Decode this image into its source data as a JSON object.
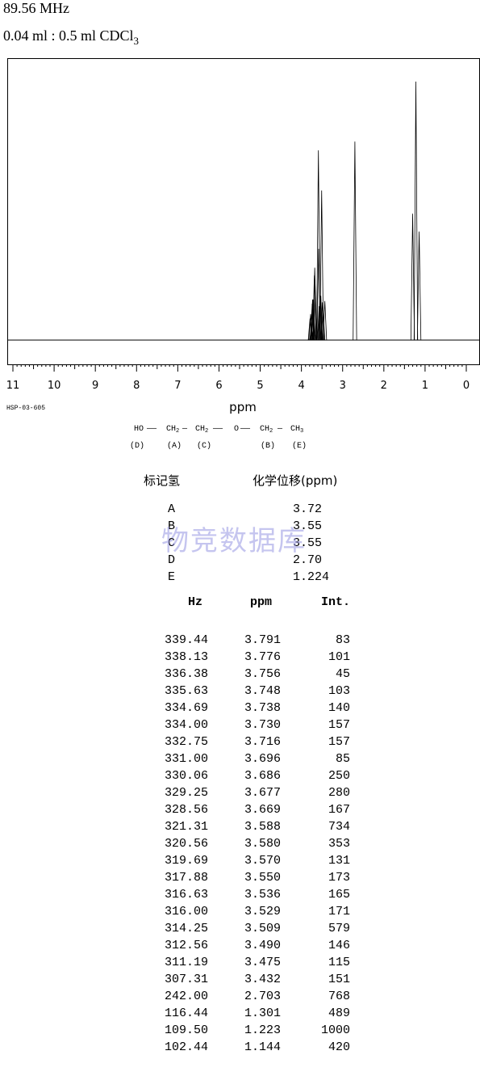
{
  "header": {
    "frequency": "89.56 MHz",
    "sample_prefix": "0.04 ml : 0.5 ml CDCl",
    "sample_subscript": "3"
  },
  "chart_data": {
    "type": "line",
    "title": "",
    "xlabel": "ppm",
    "ylabel": "",
    "xlim": [
      11,
      0
    ],
    "x_reversed": true,
    "ylim": [
      0,
      1000
    ],
    "grid": false,
    "x_ticks": [
      "11",
      "10",
      "9",
      "8",
      "7",
      "6",
      "5",
      "4",
      "3",
      "2",
      "1",
      "0"
    ],
    "peaks": [
      {
        "x": 3.791,
        "y": 83
      },
      {
        "x": 3.776,
        "y": 101
      },
      {
        "x": 3.756,
        "y": 45
      },
      {
        "x": 3.748,
        "y": 103
      },
      {
        "x": 3.738,
        "y": 140
      },
      {
        "x": 3.73,
        "y": 157
      },
      {
        "x": 3.716,
        "y": 157
      },
      {
        "x": 3.696,
        "y": 85
      },
      {
        "x": 3.686,
        "y": 250
      },
      {
        "x": 3.677,
        "y": 280
      },
      {
        "x": 3.669,
        "y": 167
      },
      {
        "x": 3.588,
        "y": 734
      },
      {
        "x": 3.58,
        "y": 353
      },
      {
        "x": 3.57,
        "y": 131
      },
      {
        "x": 3.55,
        "y": 173
      },
      {
        "x": 3.536,
        "y": 165
      },
      {
        "x": 3.529,
        "y": 171
      },
      {
        "x": 3.509,
        "y": 579
      },
      {
        "x": 3.49,
        "y": 146
      },
      {
        "x": 3.475,
        "y": 115
      },
      {
        "x": 3.432,
        "y": 151
      },
      {
        "x": 2.703,
        "y": 768
      },
      {
        "x": 1.301,
        "y": 489
      },
      {
        "x": 1.223,
        "y": 1000
      },
      {
        "x": 1.144,
        "y": 420
      }
    ]
  },
  "spectrum_code": "HSP-03-605",
  "structure": {
    "ho": "HO",
    "ch": "CH",
    "two": "2",
    "three": "3",
    "o": "O",
    "labels": [
      "(D)",
      "(A)",
      "(C)",
      "(B)",
      "(E)"
    ]
  },
  "assignment": {
    "header_label": "标记氢",
    "header_shift": "化学位移(ppm)",
    "rows": [
      {
        "label": "A",
        "shift": "3.72"
      },
      {
        "label": "B",
        "shift": "3.55"
      },
      {
        "label": "C",
        "shift": "3.55"
      },
      {
        "label": "D",
        "shift": "2.70"
      },
      {
        "label": "E",
        "shift": "1.224"
      }
    ]
  },
  "watermark": "物竞数据库",
  "peak_table": {
    "columns": [
      "Hz",
      "ppm",
      "Int."
    ],
    "rows": [
      [
        "339.44",
        "3.791",
        "83"
      ],
      [
        "338.13",
        "3.776",
        "101"
      ],
      [
        "336.38",
        "3.756",
        "45"
      ],
      [
        "335.63",
        "3.748",
        "103"
      ],
      [
        "334.69",
        "3.738",
        "140"
      ],
      [
        "334.00",
        "3.730",
        "157"
      ],
      [
        "332.75",
        "3.716",
        "157"
      ],
      [
        "331.00",
        "3.696",
        "85"
      ],
      [
        "330.06",
        "3.686",
        "250"
      ],
      [
        "329.25",
        "3.677",
        "280"
      ],
      [
        "328.56",
        "3.669",
        "167"
      ],
      [
        "321.31",
        "3.588",
        "734"
      ],
      [
        "320.56",
        "3.580",
        "353"
      ],
      [
        "319.69",
        "3.570",
        "131"
      ],
      [
        "317.88",
        "3.550",
        "173"
      ],
      [
        "316.63",
        "3.536",
        "165"
      ],
      [
        "316.00",
        "3.529",
        "171"
      ],
      [
        "314.25",
        "3.509",
        "579"
      ],
      [
        "312.56",
        "3.490",
        "146"
      ],
      [
        "311.19",
        "3.475",
        "115"
      ],
      [
        "307.31",
        "3.432",
        "151"
      ],
      [
        "242.00",
        "2.703",
        "768"
      ],
      [
        "116.44",
        "1.301",
        "489"
      ],
      [
        "109.50",
        "1.223",
        "1000"
      ],
      [
        "102.44",
        "1.144",
        "420"
      ]
    ]
  }
}
